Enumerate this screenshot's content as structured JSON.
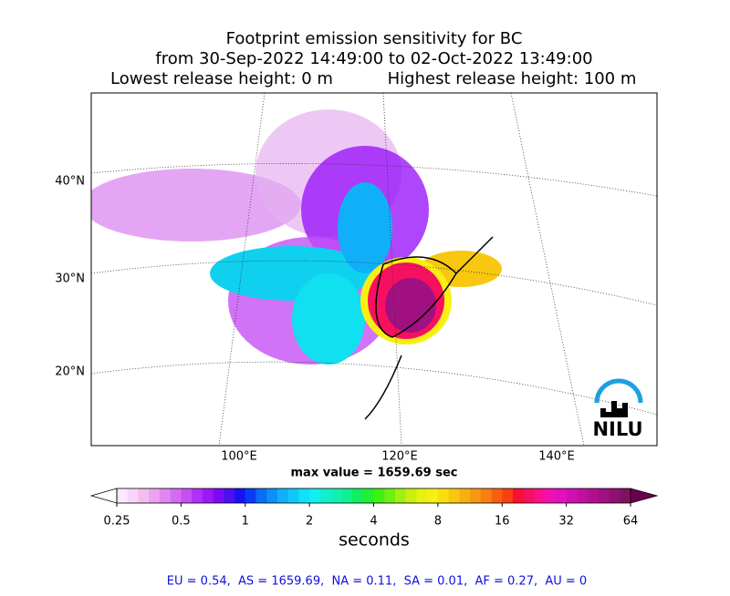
{
  "title": [
    "Footprint emission sensitivity for BC",
    "from 30-Sep-2022 14:49:00 to 02-Oct-2022 13:49:00"
  ],
  "release_heights": [
    "Lowest release height: 0 m",
    "Highest release height: 100 m"
  ],
  "map": {
    "lat_labels": [
      "40°N",
      "30°N",
      "20°N"
    ],
    "lon_labels": [
      "100°E",
      "120°E",
      "140°E"
    ],
    "logo": "NILU"
  },
  "max_value": "max value = 1659.69 sec",
  "colorbar": {
    "scale": "log",
    "lim": [
      0.25,
      64
    ],
    "ticks": [
      0.25,
      0.5,
      1,
      2,
      4,
      8,
      16,
      32,
      64
    ],
    "label": "seconds",
    "under": "#ffffff",
    "over": "#6a0050",
    "colors": [
      "#fde9fd",
      "#f9d4f9",
      "#f3bdf3",
      "#eba3f0",
      "#e088ef",
      "#d46cf0",
      "#c650f5",
      "#b030f8",
      "#9a18fa",
      "#7a0cf5",
      "#4a10f0",
      "#1a10f0",
      "#0a3cf8",
      "#0a6cf8",
      "#0a90f8",
      "#10b0f8",
      "#10c8f8",
      "#10e0f8",
      "#10f0f0",
      "#10f0d0",
      "#10f0b0",
      "#10f090",
      "#10f060",
      "#20f030",
      "#40f010",
      "#70f010",
      "#a0f010",
      "#c8f010",
      "#e8f010",
      "#f8f010",
      "#f8e010",
      "#f8c810",
      "#f8b010",
      "#f89810",
      "#f88010",
      "#f86010",
      "#f84010",
      "#f81030",
      "#f81060",
      "#f81090",
      "#f010b0",
      "#e010c0",
      "#d010b0",
      "#c010a0",
      "#b01090",
      "#a01080",
      "#901070",
      "#801060"
    ]
  },
  "summary": "EU = 0.54,  AS = 1659.69,  NA = 0.11,  SA = 0.01,  AF = 0.27,  AU = 0"
}
